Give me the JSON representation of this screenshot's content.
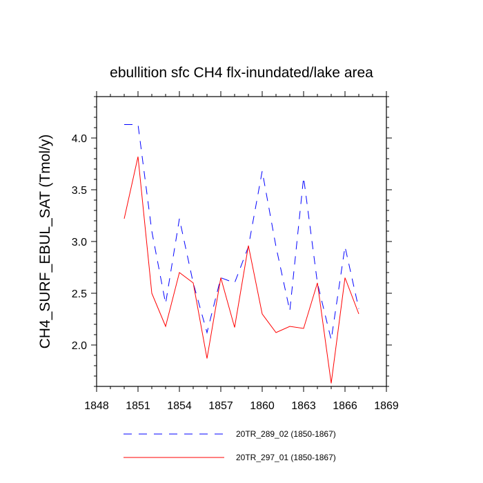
{
  "chart_data": {
    "type": "line",
    "title": "ebullition sfc CH4 flx-inundated/lake area",
    "xlabel": "",
    "ylabel": "CH4_SURF_EBUL_SAT  (Tmol/y)",
    "xlim": [
      1848,
      1869
    ],
    "ylim": [
      1.6,
      4.4
    ],
    "xticks": [
      1848,
      1851,
      1854,
      1857,
      1860,
      1863,
      1866,
      1869
    ],
    "xtick_labels": [
      "1848",
      "1851",
      "1854",
      "1857",
      "1860",
      "1863",
      "1866",
      "1869"
    ],
    "yticks": [
      2.0,
      2.5,
      3.0,
      3.5,
      4.0
    ],
    "ytick_labels": [
      "2.0",
      "2.5",
      "3.0",
      "3.5",
      "4.0"
    ],
    "x": [
      1850,
      1851,
      1852,
      1853,
      1854,
      1855,
      1856,
      1857,
      1858,
      1859,
      1860,
      1861,
      1862,
      1863,
      1864,
      1865,
      1866,
      1867
    ],
    "series": [
      {
        "name": "20TR_289_02 (1850-1867)",
        "color": "#0000ff",
        "dash": "dashed",
        "values": [
          4.13,
          4.13,
          3.1,
          2.4,
          3.22,
          2.6,
          2.12,
          2.65,
          2.6,
          2.95,
          3.68,
          2.95,
          2.33,
          3.62,
          2.6,
          2.05,
          2.95,
          2.35
        ]
      },
      {
        "name": "20TR_297_01 (1850-1867)",
        "color": "#ff0000",
        "dash": "solid",
        "values": [
          3.22,
          3.82,
          2.5,
          2.18,
          2.7,
          2.6,
          1.87,
          2.65,
          2.17,
          2.96,
          2.3,
          2.12,
          2.18,
          2.16,
          2.6,
          1.63,
          2.65,
          2.3
        ]
      }
    ],
    "legend_position": "bottom"
  }
}
